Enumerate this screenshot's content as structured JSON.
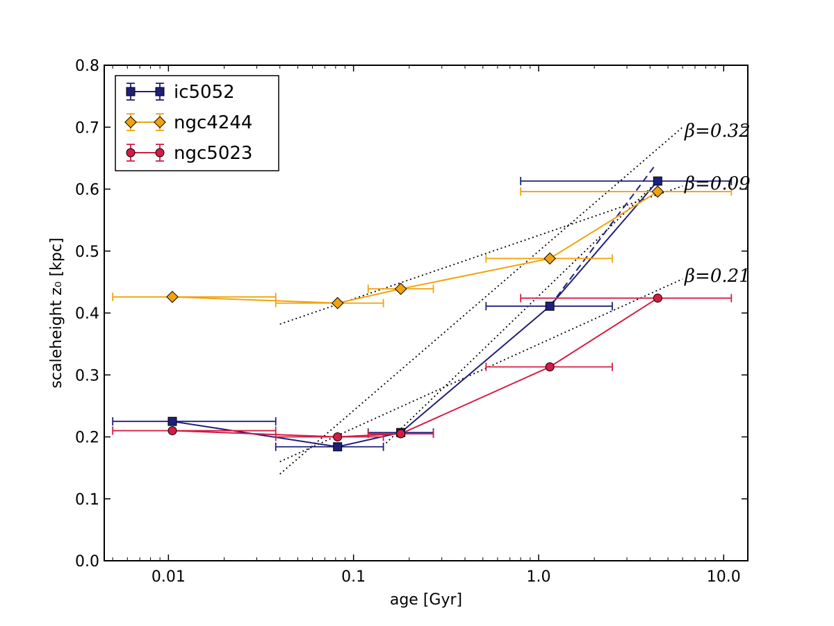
{
  "chart_data": {
    "type": "scatter",
    "xlabel": "age [Gyr]",
    "ylabel": "scaleheight z₀ [kpc]",
    "xscale": "log",
    "xlim": [
      0.0045,
      13.5
    ],
    "ylim": [
      0.0,
      0.8
    ],
    "xticks": [
      {
        "value": 0.01,
        "label": "0.01"
      },
      {
        "value": 0.1,
        "label": "0.1"
      },
      {
        "value": 1.0,
        "label": "1.0"
      },
      {
        "value": 10.0,
        "label": "10.0"
      }
    ],
    "yticks": [
      {
        "value": 0.0,
        "label": "0.0"
      },
      {
        "value": 0.1,
        "label": "0.1"
      },
      {
        "value": 0.2,
        "label": "0.2"
      },
      {
        "value": 0.3,
        "label": "0.3"
      },
      {
        "value": 0.4,
        "label": "0.4"
      },
      {
        "value": 0.5,
        "label": "0.5"
      },
      {
        "value": 0.6,
        "label": "0.6"
      },
      {
        "value": 0.7,
        "label": "0.7"
      },
      {
        "value": 0.8,
        "label": "0.8"
      }
    ],
    "legend": "top-left",
    "grid": false,
    "series": [
      {
        "name": "ic5052",
        "color": "#1f1f7a",
        "marker": "square",
        "points": [
          {
            "x": 0.0105,
            "y": 0.225,
            "xmin": 0.005,
            "xmax": 0.038
          },
          {
            "x": 0.082,
            "y": 0.184,
            "xmin": 0.038,
            "xmax": 0.145
          },
          {
            "x": 0.18,
            "y": 0.207,
            "xmin": 0.12,
            "xmax": 0.27
          },
          {
            "x": 1.15,
            "y": 0.411,
            "xmin": 0.52,
            "xmax": 2.5
          },
          {
            "x": 4.4,
            "y": 0.613,
            "xmin": 0.8,
            "xmax": 11.0
          }
        ]
      },
      {
        "name": "ngc4244",
        "color": "#f2a20c",
        "marker": "diamond",
        "points": [
          {
            "x": 0.0105,
            "y": 0.426,
            "xmin": 0.005,
            "xmax": 0.038
          },
          {
            "x": 0.082,
            "y": 0.416,
            "xmin": 0.038,
            "xmax": 0.145
          },
          {
            "x": 0.18,
            "y": 0.439,
            "xmin": 0.12,
            "xmax": 0.27
          },
          {
            "x": 1.15,
            "y": 0.488,
            "xmin": 0.52,
            "xmax": 2.5
          },
          {
            "x": 4.4,
            "y": 0.596,
            "xmin": 0.8,
            "xmax": 11.0
          }
        ]
      },
      {
        "name": "ngc5023",
        "color": "#d41c44",
        "marker": "circle",
        "points": [
          {
            "x": 0.0105,
            "y": 0.21,
            "xmin": 0.005,
            "xmax": 0.038
          },
          {
            "x": 0.082,
            "y": 0.2,
            "xmin": 0.038,
            "xmax": 0.145
          },
          {
            "x": 0.18,
            "y": 0.205,
            "xmin": 0.12,
            "xmax": 0.27
          },
          {
            "x": 1.15,
            "y": 0.313,
            "xmin": 0.52,
            "xmax": 2.5
          },
          {
            "x": 4.4,
            "y": 0.424,
            "xmin": 0.8,
            "xmax": 11.0
          }
        ]
      }
    ],
    "fits": [
      {
        "label": "β=0.32",
        "style": "dotted",
        "color": "#000000",
        "x0": 0.04,
        "y0": 0.14,
        "x1": 6.0,
        "y1": 0.7
      },
      {
        "label": "β=0.09",
        "style": "dotted",
        "color": "#000000",
        "x0": 0.04,
        "y0": 0.382,
        "x1": 6.0,
        "y1": 0.605
      },
      {
        "label": "β=0.21",
        "style": "dotted",
        "color": "#000000",
        "x0": 0.04,
        "y0": 0.16,
        "x1": 6.0,
        "y1": 0.455
      },
      {
        "label": "",
        "style": "dotted",
        "color": "#000000",
        "x0": 0.15,
        "y0": 0.19,
        "x1": 4.4,
        "y1": 0.613
      },
      {
        "label": "",
        "style": "dashed",
        "color": "#1f1f7a",
        "x0": 1.15,
        "y0": 0.411,
        "x1": 4.3,
        "y1": 0.64
      }
    ]
  }
}
